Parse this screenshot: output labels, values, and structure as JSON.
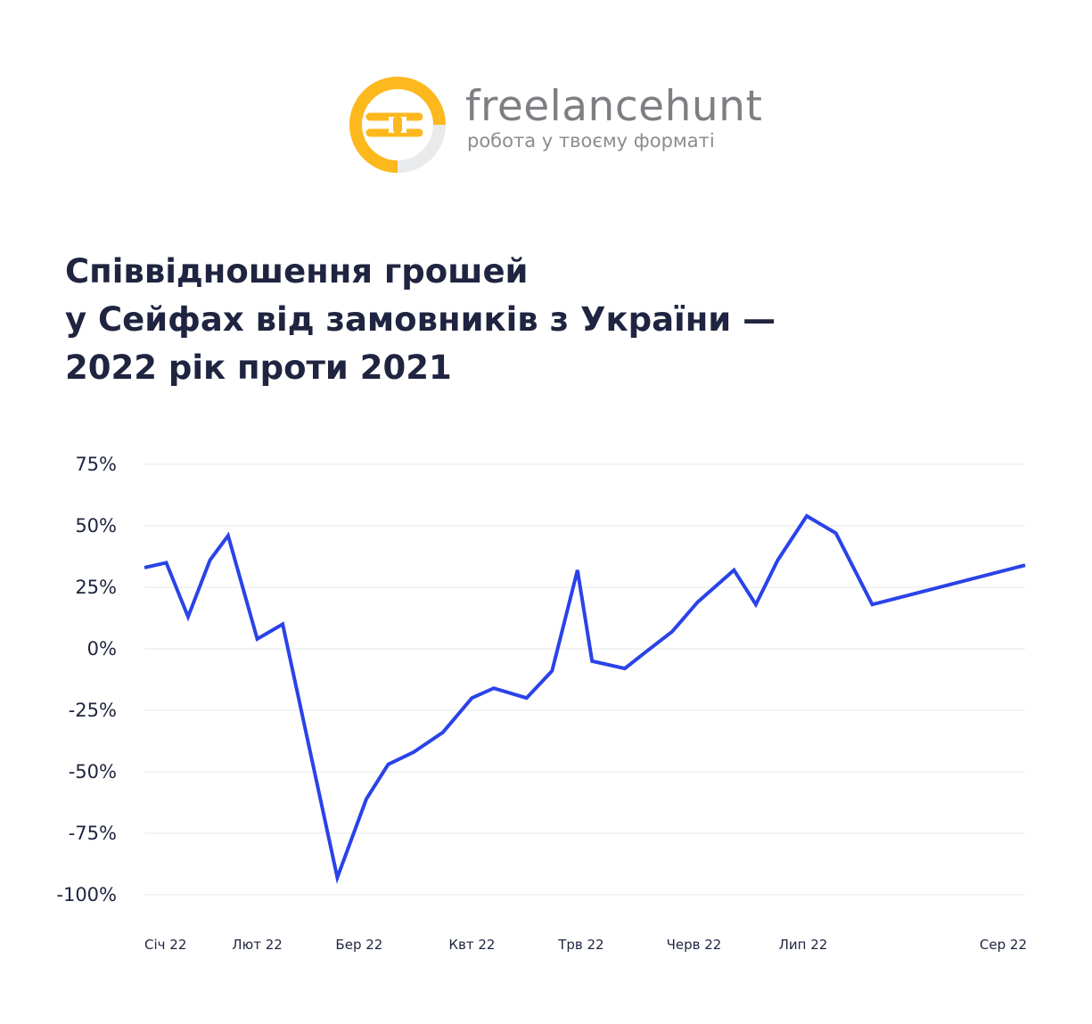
{
  "brand": {
    "name": "freelancehunt",
    "tagline": "робота у твоєму форматі",
    "colors": {
      "accent": "#fdb81e",
      "ring_gray": "#e9eaec",
      "text_gray": "#7d7f83"
    }
  },
  "chart_data": {
    "type": "line",
    "title_lines": [
      "Співвідношення грошей",
      "у Сейфах від замовників з України —",
      "2022 рік проти 2021"
    ],
    "xlabel": "",
    "ylabel": "",
    "ylim": [
      -100,
      75
    ],
    "yticks": [
      75,
      50,
      25,
      0,
      -25,
      -50,
      -75,
      -100
    ],
    "ytick_labels": [
      "75%",
      "50%",
      "25%",
      "0%",
      "-25%",
      "-50%",
      "-75%",
      "-100%"
    ],
    "xlim": [
      "2022-01-01",
      "2022-08-31"
    ],
    "xticks": [
      {
        "date": "2022-01-01",
        "label": "Січ 22"
      },
      {
        "date": "2022-02-01",
        "label": "Лют 22"
      },
      {
        "date": "2022-03-01",
        "label": "Бер 22"
      },
      {
        "date": "2022-04-01",
        "label": "Квт 22"
      },
      {
        "date": "2022-05-01",
        "label": "Трв 22"
      },
      {
        "date": "2022-06-01",
        "label": "Черв 22"
      },
      {
        "date": "2022-07-01",
        "label": "Лип 22"
      },
      {
        "date": "2022-08-01",
        "label": "Сер 22"
      }
    ],
    "grid": true,
    "line_color": "#2a43e8",
    "series": [
      {
        "points": [
          {
            "x": "2022-01-01",
            "y": 33
          },
          {
            "x": "2022-01-07",
            "y": 35
          },
          {
            "x": "2022-01-13",
            "y": 13
          },
          {
            "x": "2022-01-19",
            "y": 36
          },
          {
            "x": "2022-01-24",
            "y": 46
          },
          {
            "x": "2022-02-01",
            "y": 4
          },
          {
            "x": "2022-02-08",
            "y": 10
          },
          {
            "x": "2022-02-23",
            "y": -93
          },
          {
            "x": "2022-03-03",
            "y": -61
          },
          {
            "x": "2022-03-09",
            "y": -47
          },
          {
            "x": "2022-03-16",
            "y": -42
          },
          {
            "x": "2022-03-24",
            "y": -34
          },
          {
            "x": "2022-04-01",
            "y": -20
          },
          {
            "x": "2022-04-07",
            "y": -16
          },
          {
            "x": "2022-04-16",
            "y": -20
          },
          {
            "x": "2022-04-23",
            "y": -9
          },
          {
            "x": "2022-04-30",
            "y": 32
          },
          {
            "x": "2022-05-04",
            "y": -5
          },
          {
            "x": "2022-05-13",
            "y": -8
          },
          {
            "x": "2022-05-19",
            "y": -1
          },
          {
            "x": "2022-05-26",
            "y": 7
          },
          {
            "x": "2022-06-02",
            "y": 19
          },
          {
            "x": "2022-06-12",
            "y": 32
          },
          {
            "x": "2022-06-18",
            "y": 18
          },
          {
            "x": "2022-06-24",
            "y": 36
          },
          {
            "x": "2022-07-02",
            "y": 54
          },
          {
            "x": "2022-07-10",
            "y": 47
          },
          {
            "x": "2022-07-20",
            "y": 18
          },
          {
            "x": "2022-08-31",
            "y": 34
          }
        ]
      }
    ]
  }
}
